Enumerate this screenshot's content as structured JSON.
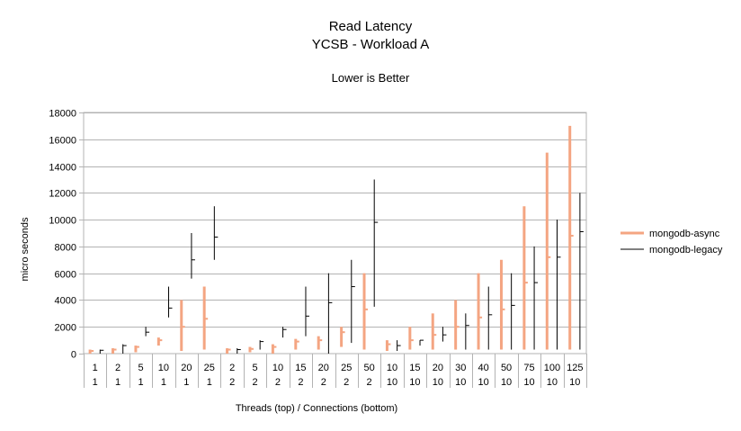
{
  "chart_data": {
    "type": "stock",
    "title": [
      "Read Latency",
      "YCSB - Workload A"
    ],
    "subtitle": "Lower is Better",
    "xlabel": "Threads (top)  / Connections (bottom)",
    "ylabel": "micro seconds",
    "ylim": [
      0,
      18000
    ],
    "yticks": [
      0,
      2000,
      4000,
      6000,
      8000,
      10000,
      12000,
      14000,
      16000,
      18000
    ],
    "grid": true,
    "legend_position": "right",
    "categories": [
      {
        "threads": "1",
        "connections": "1"
      },
      {
        "threads": "2",
        "connections": "1"
      },
      {
        "threads": "5",
        "connections": "1"
      },
      {
        "threads": "10",
        "connections": "1"
      },
      {
        "threads": "20",
        "connections": "1"
      },
      {
        "threads": "25",
        "connections": "1"
      },
      {
        "threads": "2",
        "connections": "2"
      },
      {
        "threads": "5",
        "connections": "2"
      },
      {
        "threads": "10",
        "connections": "2"
      },
      {
        "threads": "15",
        "connections": "2"
      },
      {
        "threads": "20",
        "connections": "2"
      },
      {
        "threads": "25",
        "connections": "2"
      },
      {
        "threads": "50",
        "connections": "2"
      },
      {
        "threads": "10",
        "connections": "10"
      },
      {
        "threads": "15",
        "connections": "10"
      },
      {
        "threads": "20",
        "connections": "10"
      },
      {
        "threads": "30",
        "connections": "10"
      },
      {
        "threads": "40",
        "connections": "10"
      },
      {
        "threads": "50",
        "connections": "10"
      },
      {
        "threads": "75",
        "connections": "10"
      },
      {
        "threads": "100",
        "connections": "10"
      },
      {
        "threads": "125",
        "connections": "10"
      }
    ],
    "series": [
      {
        "name": "mongodb-async",
        "color": "#f4a582",
        "low": [
          0,
          0,
          100,
          600,
          200,
          300,
          0,
          100,
          0,
          300,
          300,
          500,
          300,
          200,
          300,
          300,
          300,
          300,
          300,
          300,
          300,
          300
        ],
        "high": [
          300,
          400,
          600,
          1200,
          4000,
          5000,
          400,
          500,
          700,
          1100,
          1300,
          2000,
          6000,
          1000,
          2000,
          3000,
          4000,
          6000,
          7000,
          11000,
          15000,
          17000
        ],
        "close": [
          200,
          300,
          500,
          1000,
          2000,
          2600,
          300,
          350,
          500,
          900,
          1000,
          1600,
          3300,
          700,
          1000,
          1400,
          2000,
          2700,
          3300,
          5300,
          7200,
          8800
        ]
      },
      {
        "name": "mongodb-legacy",
        "color": "#000000",
        "low": [
          0,
          0,
          1300,
          2700,
          5600,
          7000,
          0,
          300,
          1200,
          1300,
          0,
          800,
          3500,
          200,
          600,
          900,
          300,
          300,
          300,
          300,
          300,
          300
        ],
        "high": [
          300,
          700,
          2000,
          5000,
          9000,
          11000,
          400,
          1000,
          2000,
          5000,
          6000,
          7000,
          13000,
          1000,
          1000,
          2000,
          3000,
          5000,
          6000,
          8000,
          10000,
          12000
        ],
        "close": [
          250,
          600,
          1600,
          3400,
          7000,
          8700,
          300,
          900,
          1800,
          2800,
          3800,
          5000,
          9800,
          600,
          1000,
          1400,
          2100,
          2900,
          3600,
          5300,
          7200,
          9100
        ]
      }
    ]
  }
}
